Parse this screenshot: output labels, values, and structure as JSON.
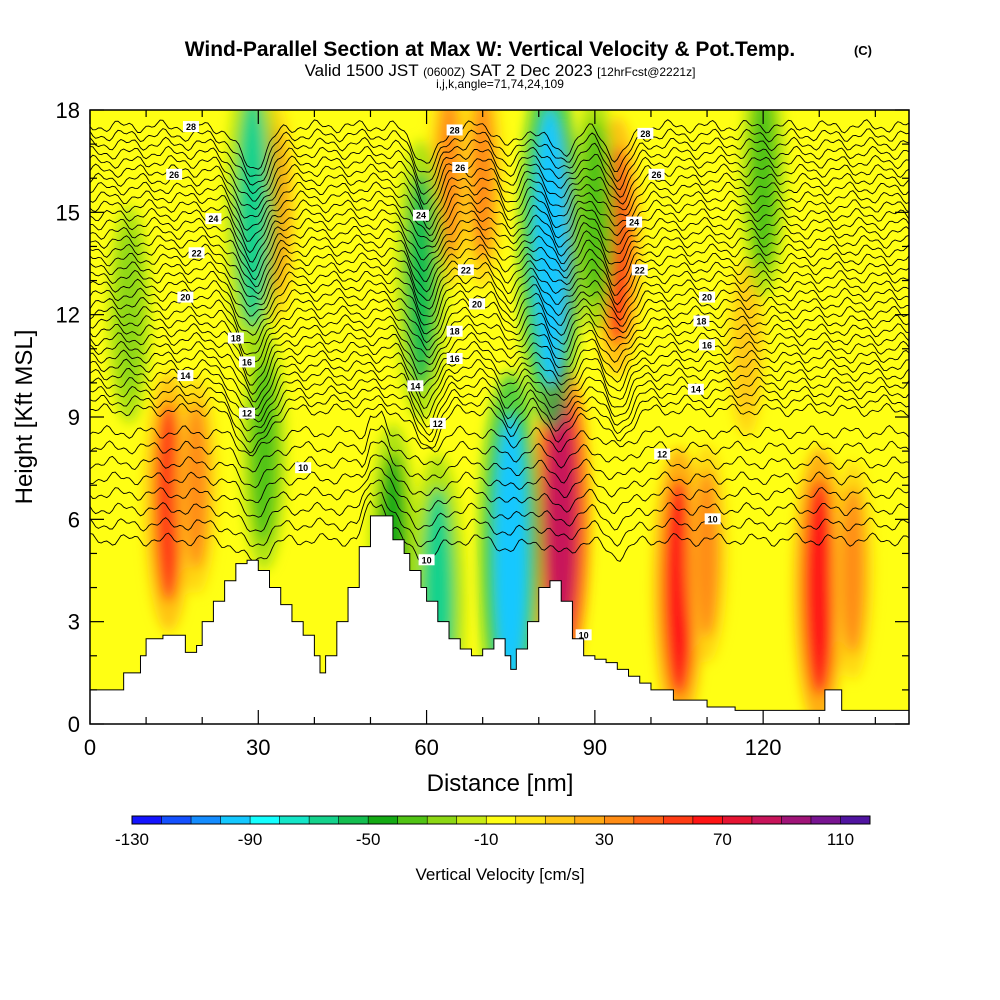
{
  "title": "Wind-Parallel Section at Max W: Vertical Velocity & Pot.Temp.",
  "title_mark": "(C)",
  "subtitle": {
    "valid": "Valid 1500 JST",
    "utc": "(0600Z)",
    "date": "SAT 2 Dec 2023",
    "forecast": "[12hrFcst@2221z]"
  },
  "params": "i,j,k,angle=71,74,24,109",
  "chart_data": {
    "type": "heatmap",
    "xlabel": "Distance [nm]",
    "ylabel": "Height [Kft MSL]",
    "xlim": [
      0,
      146
    ],
    "ylim": [
      0,
      18
    ],
    "x_ticks": [
      0,
      30,
      60,
      90,
      120
    ],
    "x_tick_labels": [
      "0",
      "30",
      "60",
      "90",
      "120"
    ],
    "y_ticks": [
      0,
      3,
      6,
      9,
      12,
      15,
      18
    ],
    "y_tick_labels": [
      "0",
      "3",
      "6",
      "9",
      "12",
      "15",
      "18"
    ],
    "colorbar": {
      "label": "Vertical Velocity [cm/s]",
      "min": -130,
      "max": 120,
      "step": 10,
      "tick_values": [
        -130,
        -90,
        -50,
        -10,
        30,
        70,
        110
      ],
      "tick_labels": [
        "-130",
        "-90",
        "-50",
        "-10",
        "30",
        "70",
        "110"
      ],
      "colors": [
        "#1414ff",
        "#1450ff",
        "#148cff",
        "#14c8ff",
        "#14ffff",
        "#14e6c8",
        "#14d28c",
        "#14be50",
        "#14aa14",
        "#50c314",
        "#8cd714",
        "#c8eb14",
        "#ffff14",
        "#ffe614",
        "#ffc814",
        "#ffaa14",
        "#ff8c14",
        "#ff6414",
        "#ff3c14",
        "#ff1414",
        "#e61432",
        "#c8145a",
        "#a01478",
        "#781491",
        "#5014a0"
      ]
    },
    "background_value": -10,
    "terrain": [
      [
        0,
        1.0
      ],
      [
        3,
        1.0
      ],
      [
        6,
        1.5
      ],
      [
        9,
        2.0
      ],
      [
        10,
        2.5
      ],
      [
        12,
        2.5
      ],
      [
        13,
        2.6
      ],
      [
        16,
        2.6
      ],
      [
        17,
        2.1
      ],
      [
        19,
        2.3
      ],
      [
        20,
        3.0
      ],
      [
        22,
        3.6
      ],
      [
        24,
        4.2
      ],
      [
        26,
        4.7
      ],
      [
        28,
        4.8
      ],
      [
        30,
        4.5
      ],
      [
        32,
        4.0
      ],
      [
        34,
        3.5
      ],
      [
        36,
        3.0
      ],
      [
        38,
        2.6
      ],
      [
        40,
        2.0
      ],
      [
        41,
        1.5
      ],
      [
        42,
        2.0
      ],
      [
        44,
        3.0
      ],
      [
        46,
        4.0
      ],
      [
        48,
        5.2
      ],
      [
        50,
        6.1
      ],
      [
        52,
        6.1
      ],
      [
        54,
        5.4
      ],
      [
        56,
        5.0
      ],
      [
        57,
        4.5
      ],
      [
        59,
        4.0
      ],
      [
        60,
        3.6
      ],
      [
        62,
        3.0
      ],
      [
        64,
        2.5
      ],
      [
        66,
        2.2
      ],
      [
        68,
        2.0
      ],
      [
        70,
        2.2
      ],
      [
        72,
        2.5
      ],
      [
        74,
        2.0
      ],
      [
        75,
        1.6
      ],
      [
        76,
        2.2
      ],
      [
        78,
        3.0
      ],
      [
        80,
        4.0
      ],
      [
        82,
        4.2
      ],
      [
        84,
        3.6
      ],
      [
        86,
        2.5
      ],
      [
        88,
        2.0
      ],
      [
        90,
        1.9
      ],
      [
        92,
        1.8
      ],
      [
        94,
        1.6
      ],
      [
        96,
        1.4
      ],
      [
        98,
        1.2
      ],
      [
        100,
        1.0
      ],
      [
        104,
        0.7
      ],
      [
        110,
        0.5
      ],
      [
        115,
        0.4
      ],
      [
        125,
        0.4
      ],
      [
        130,
        0.4
      ],
      [
        131,
        1.0
      ],
      [
        133,
        1.0
      ],
      [
        134,
        0.4
      ],
      [
        140,
        0.4
      ],
      [
        145,
        0.4
      ],
      [
        146,
        1.5
      ]
    ],
    "updrafts": [
      {
        "x": 14,
        "y": 6.5,
        "value": 50
      },
      {
        "x": 19,
        "y": 7.0,
        "value": 30
      },
      {
        "x": 33,
        "y": 15.0,
        "value": 30
      },
      {
        "x": 64,
        "y": 16.0,
        "value": 30
      },
      {
        "x": 70,
        "y": 16.0,
        "value": 30
      },
      {
        "x": 84,
        "y": 6.0,
        "value": 80
      },
      {
        "x": 84,
        "y": 14.0,
        "value": 40
      },
      {
        "x": 94,
        "y": 14.0,
        "value": 50
      },
      {
        "x": 105,
        "y": 4.0,
        "value": 60
      },
      {
        "x": 110,
        "y": 5.0,
        "value": 30
      },
      {
        "x": 130,
        "y": 4.0,
        "value": 60
      },
      {
        "x": 136,
        "y": 4.5,
        "value": 30
      },
      {
        "x": 117,
        "y": 11.0,
        "value": 10
      }
    ],
    "downdrafts": [
      {
        "x": 29,
        "y": 15.0,
        "value": -70
      },
      {
        "x": 31,
        "y": 8.0,
        "value": -40
      },
      {
        "x": 59,
        "y": 13.0,
        "value": -60
      },
      {
        "x": 54,
        "y": 5.0,
        "value": -50
      },
      {
        "x": 62,
        "y": 3.5,
        "value": -70
      },
      {
        "x": 75,
        "y": 5.0,
        "value": -100
      },
      {
        "x": 82,
        "y": 14.0,
        "value": -100
      },
      {
        "x": 90,
        "y": 15.0,
        "value": -40
      },
      {
        "x": 120,
        "y": 16.0,
        "value": -40
      },
      {
        "x": 7,
        "y": 12.0,
        "value": -30
      }
    ],
    "theta_contours": {
      "levels": [
        8,
        8.5,
        9,
        9.5,
        10,
        10.5,
        11,
        11.5,
        12,
        12.5,
        13,
        13.5,
        14,
        14.5,
        15,
        15.5,
        16,
        16.5,
        17,
        17.5,
        18,
        18.5,
        19,
        19.5,
        20,
        20.5,
        21,
        21.5,
        22,
        22.5,
        23,
        23.5,
        24,
        24.5,
        25,
        25.5,
        26,
        26.5,
        27,
        27.5,
        28
      ],
      "labels": [
        {
          "text": "28",
          "x": 18,
          "y": 17.5
        },
        {
          "text": "26",
          "x": 15,
          "y": 16.1
        },
        {
          "text": "24",
          "x": 22,
          "y": 14.8
        },
        {
          "text": "22",
          "x": 19,
          "y": 13.8
        },
        {
          "text": "20",
          "x": 17,
          "y": 12.5
        },
        {
          "text": "18",
          "x": 26,
          "y": 11.3
        },
        {
          "text": "16",
          "x": 28,
          "y": 10.6
        },
        {
          "text": "14",
          "x": 17,
          "y": 10.2
        },
        {
          "text": "12",
          "x": 28,
          "y": 9.1
        },
        {
          "text": "10",
          "x": 38,
          "y": 7.5
        },
        {
          "text": "28",
          "x": 65,
          "y": 17.4
        },
        {
          "text": "26",
          "x": 66,
          "y": 16.3
        },
        {
          "text": "24",
          "x": 59,
          "y": 14.9
        },
        {
          "text": "22",
          "x": 67,
          "y": 13.3
        },
        {
          "text": "20",
          "x": 69,
          "y": 12.3
        },
        {
          "text": "18",
          "x": 65,
          "y": 11.5
        },
        {
          "text": "16",
          "x": 65,
          "y": 10.7
        },
        {
          "text": "14",
          "x": 58,
          "y": 9.9
        },
        {
          "text": "12",
          "x": 62,
          "y": 8.8
        },
        {
          "text": "10",
          "x": 60,
          "y": 4.8
        },
        {
          "text": "28",
          "x": 99,
          "y": 17.3
        },
        {
          "text": "26",
          "x": 101,
          "y": 16.1
        },
        {
          "text": "24",
          "x": 97,
          "y": 14.7
        },
        {
          "text": "22",
          "x": 98,
          "y": 13.3
        },
        {
          "text": "20",
          "x": 110,
          "y": 12.5
        },
        {
          "text": "18",
          "x": 109,
          "y": 11.8
        },
        {
          "text": "16",
          "x": 110,
          "y": 11.1
        },
        {
          "text": "14",
          "x": 108,
          "y": 9.8
        },
        {
          "text": "12",
          "x": 102,
          "y": 7.9
        },
        {
          "text": "10",
          "x": 111,
          "y": 6.0
        },
        {
          "text": "10",
          "x": 88,
          "y": 2.6
        }
      ]
    }
  }
}
